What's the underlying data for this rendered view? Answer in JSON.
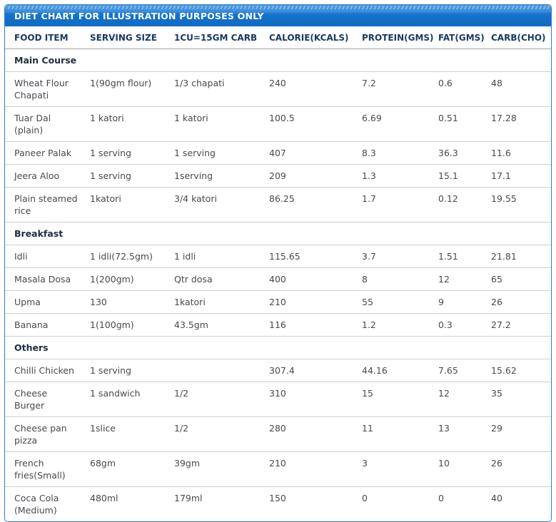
{
  "chart_data": {
    "type": "table",
    "title": "DIET CHART FOR ILLUSTRATION PURPOSES ONLY",
    "columns": [
      "FOOD ITEM",
      "SERVING SIZE",
      "1CU=15GM CARB",
      "CALORIE(KCALS)",
      "PROTEIN(GMS)",
      "FAT(GMS)",
      "CARB(CHO)"
    ],
    "sections": [
      {
        "name": "Main Course",
        "rows": [
          [
            "Wheat Flour Chapati",
            "1(90gm flour)",
            "1/3 chapati",
            "240",
            "7.2",
            "0.6",
            "48"
          ],
          [
            "Tuar Dal (plain)",
            "1 katori",
            "1 katori",
            "100.5",
            "6.69",
            "0.51",
            "17.28"
          ],
          [
            "Paneer Palak",
            "1 serving",
            "1 serving",
            "407",
            "8.3",
            "36.3",
            "11.6"
          ],
          [
            "Jeera Aloo",
            "1 serving",
            "1serving",
            "209",
            "1.3",
            "15.1",
            "17.1"
          ],
          [
            "Plain steamed rice",
            "1katori",
            "3/4 katori",
            "86.25",
            "1.7",
            "0.12",
            "19.55"
          ]
        ]
      },
      {
        "name": "Breakfast",
        "rows": [
          [
            "Idli",
            "1 idli(72.5gm)",
            "1 idli",
            "115.65",
            "3.7",
            "1.51",
            "21.81"
          ],
          [
            "Masala Dosa",
            "1(200gm)",
            "Qtr dosa",
            "400",
            "8",
            "12",
            "65"
          ],
          [
            "Upma",
            "130",
            "1katori",
            "210",
            "55",
            "9",
            "26"
          ],
          [
            "Banana",
            "1(100gm)",
            "43.5gm",
            "116",
            "1.2",
            "0.3",
            "27.2"
          ]
        ]
      },
      {
        "name": "Others",
        "rows": [
          [
            "Chilli Chicken",
            "1 serving",
            "",
            "307.4",
            "44.16",
            "7.65",
            "15.62"
          ],
          [
            "Cheese Burger",
            "1 sandwich",
            "1/2",
            "310",
            "15",
            "12",
            "35"
          ],
          [
            "Cheese pan pizza",
            "1slice",
            "1/2",
            "280",
            "11",
            "13",
            "29"
          ],
          [
            "French fries(Small)",
            "68gm",
            "39gm",
            "210",
            "3",
            "10",
            "26"
          ],
          [
            "Coca Cola (Medium)",
            "480ml",
            "179ml",
            "150",
            "0",
            "0",
            "40"
          ]
        ]
      }
    ],
    "layout_hints": {
      "legend": "none",
      "grid": "horizontal-row-dividers-only",
      "sections_render_as": "full-width bold rows"
    }
  },
  "colors": {
    "title_bar_top": "#4e9ce2",
    "title_bar_bottom": "#0f6cc6",
    "panel_border": "#3079c5",
    "title_text": "#ffffff",
    "column_header_text": "#17395f",
    "section_text": "#1e2d42",
    "body_text": "#46494f",
    "row_divider": "#d0d0d0",
    "header_divider": "#a5a5a5"
  }
}
